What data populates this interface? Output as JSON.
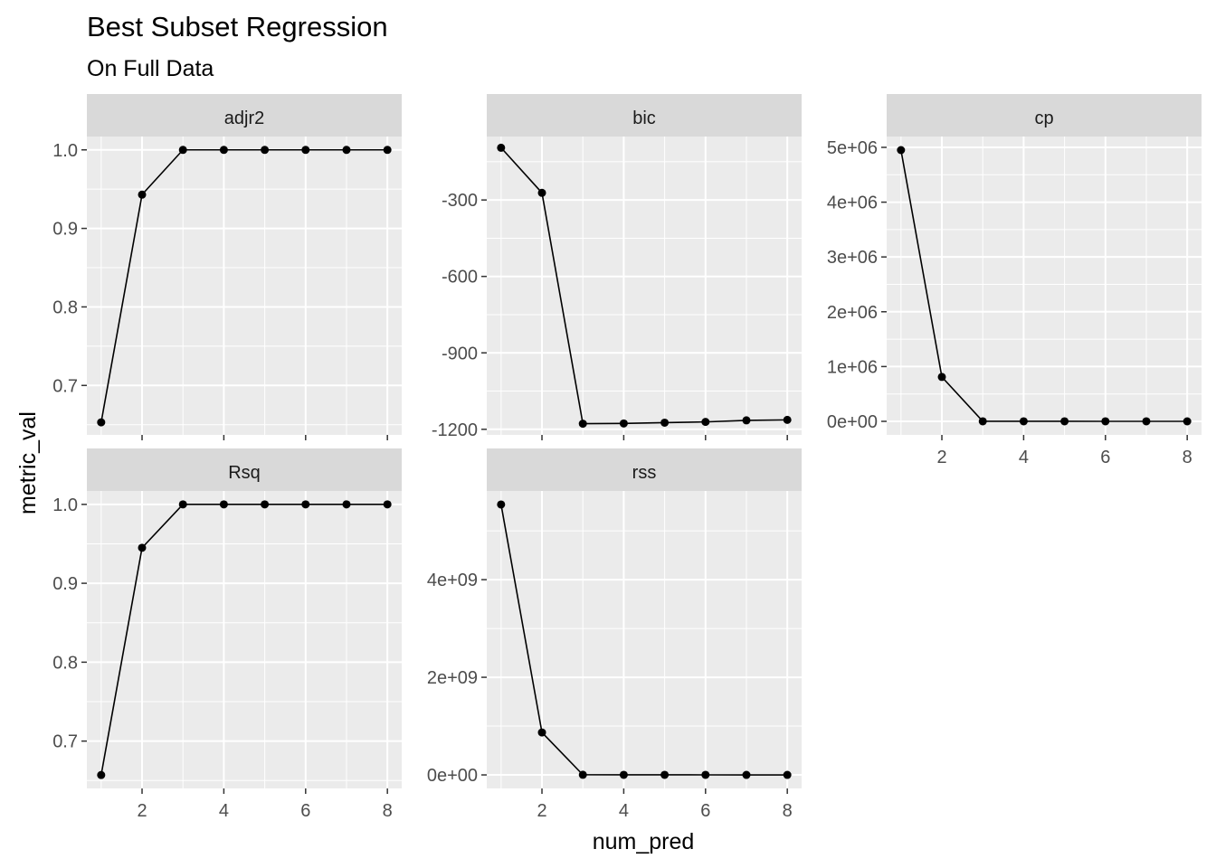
{
  "chart_data": {
    "type": "line",
    "title": "Best Subset Regression",
    "subtitle": "On Full Data",
    "xlabel": "num_pred",
    "ylabel": "metric_val",
    "x": [
      1,
      2,
      3,
      4,
      5,
      6,
      7,
      8
    ],
    "x_ticks": [
      2,
      4,
      6,
      8
    ],
    "grid": true,
    "facets": [
      {
        "name": "adjr2",
        "values": [
          0.653,
          0.943,
          1.0,
          1.0,
          1.0,
          1.0,
          1.0,
          1.0
        ],
        "ylim": [
          0.637,
          1.017
        ],
        "y_ticks": [
          0.7,
          0.8,
          0.9,
          1.0
        ],
        "y_tick_labels": [
          "0.7",
          "0.8",
          "0.9",
          "1.0"
        ]
      },
      {
        "name": "bic",
        "values": [
          -95,
          -272,
          -1178,
          -1177,
          -1174,
          -1171,
          -1165,
          -1163
        ],
        "ylim": [
          -1222,
          -51
        ],
        "y_ticks": [
          -300,
          -600,
          -900,
          -1200
        ],
        "y_tick_labels": [
          "-300",
          "-600",
          "-900",
          "-1200"
        ]
      },
      {
        "name": "cp",
        "values": [
          4950000,
          810000,
          1000,
          500,
          300,
          200,
          100,
          0
        ],
        "ylim": [
          -247500,
          5197500
        ],
        "y_ticks": [
          0,
          1000000,
          2000000,
          3000000,
          4000000,
          5000000
        ],
        "y_tick_labels": [
          "0e+00",
          "1e+06",
          "2e+06",
          "3e+06",
          "4e+06",
          "5e+06"
        ]
      },
      {
        "name": "Rsq",
        "values": [
          0.657,
          0.945,
          1.0,
          1.0,
          1.0,
          1.0,
          1.0,
          1.0
        ],
        "ylim": [
          0.64,
          1.017
        ],
        "y_ticks": [
          0.7,
          0.8,
          0.9,
          1.0
        ],
        "y_tick_labels": [
          "0.7",
          "0.8",
          "0.9",
          "1.0"
        ]
      },
      {
        "name": "rss",
        "values": [
          5540000000,
          870000000,
          3000000,
          2000000,
          1500000,
          1000000,
          500000,
          0
        ],
        "ylim": [
          -277000000,
          5817000000
        ],
        "y_ticks": [
          0,
          2000000000,
          4000000000
        ],
        "y_tick_labels": [
          "0e+00",
          "2e+09",
          "4e+09"
        ]
      }
    ]
  }
}
